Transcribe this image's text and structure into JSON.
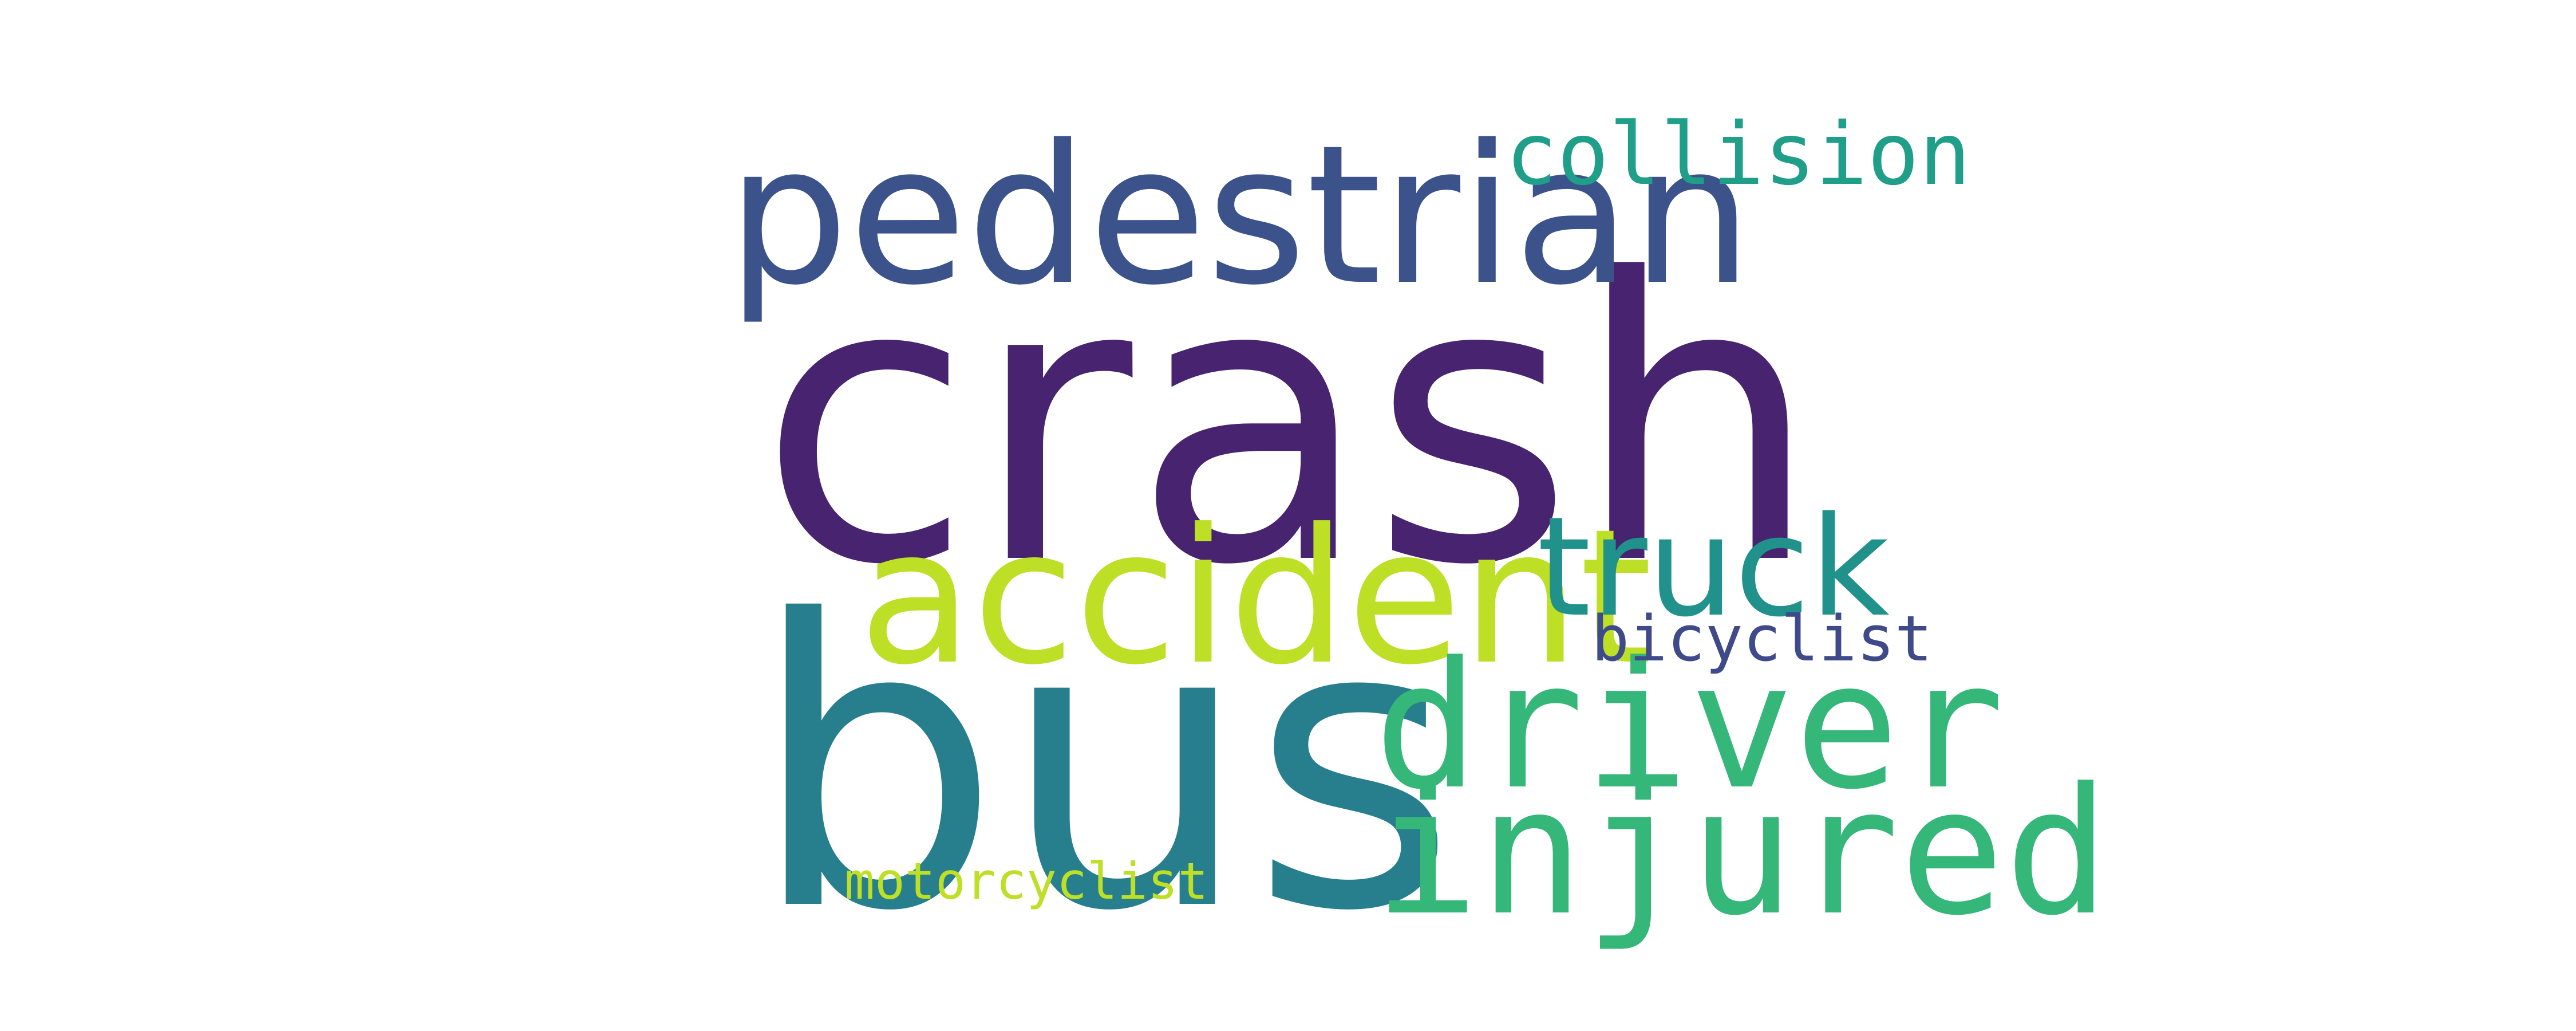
{
  "word_cloud": {
    "words": [
      {
        "text": "crash",
        "color": "#472370"
      },
      {
        "text": "bus",
        "color": "#277f8e"
      },
      {
        "text": "pedestrian",
        "color": "#3b528b"
      },
      {
        "text": "accident",
        "color": "#bddf26"
      },
      {
        "text": "truck",
        "color": "#21918c"
      },
      {
        "text": "driver",
        "color": "#35b779"
      },
      {
        "text": "injured",
        "color": "#35b779"
      },
      {
        "text": "collision",
        "color": "#1f9e89"
      },
      {
        "text": "bicyclist",
        "color": "#3e4a89"
      },
      {
        "text": "motorcyclist",
        "color": "#bddf26"
      }
    ]
  }
}
